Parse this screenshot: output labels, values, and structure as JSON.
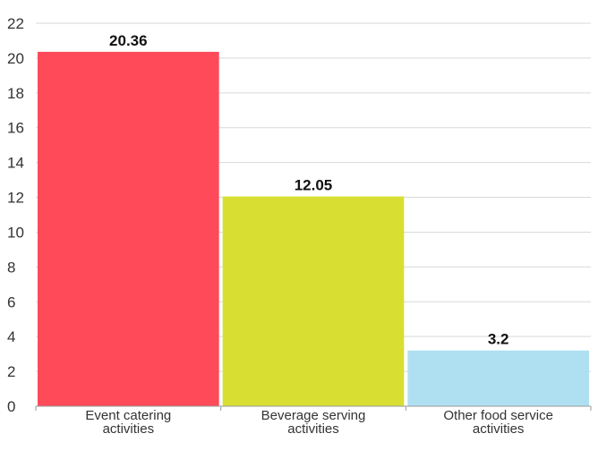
{
  "chart_data": {
    "type": "bar",
    "categories": [
      [
        "Event catering",
        "activities"
      ],
      [
        "Beverage serving",
        "activities"
      ],
      [
        "Other food service",
        "activities"
      ]
    ],
    "values": [
      20.36,
      12.05,
      3.2
    ],
    "value_labels": [
      "20.36",
      "12.05",
      "3.2"
    ],
    "colors": [
      "#ff4a5a",
      "#d8df32",
      "#aee0f2"
    ],
    "title": "",
    "xlabel": "",
    "ylabel": "",
    "ylim": [
      0,
      22
    ],
    "yticks": [
      0,
      2,
      4,
      6,
      8,
      10,
      12,
      14,
      16,
      18,
      20,
      22
    ],
    "grid": true,
    "legend": "none"
  }
}
